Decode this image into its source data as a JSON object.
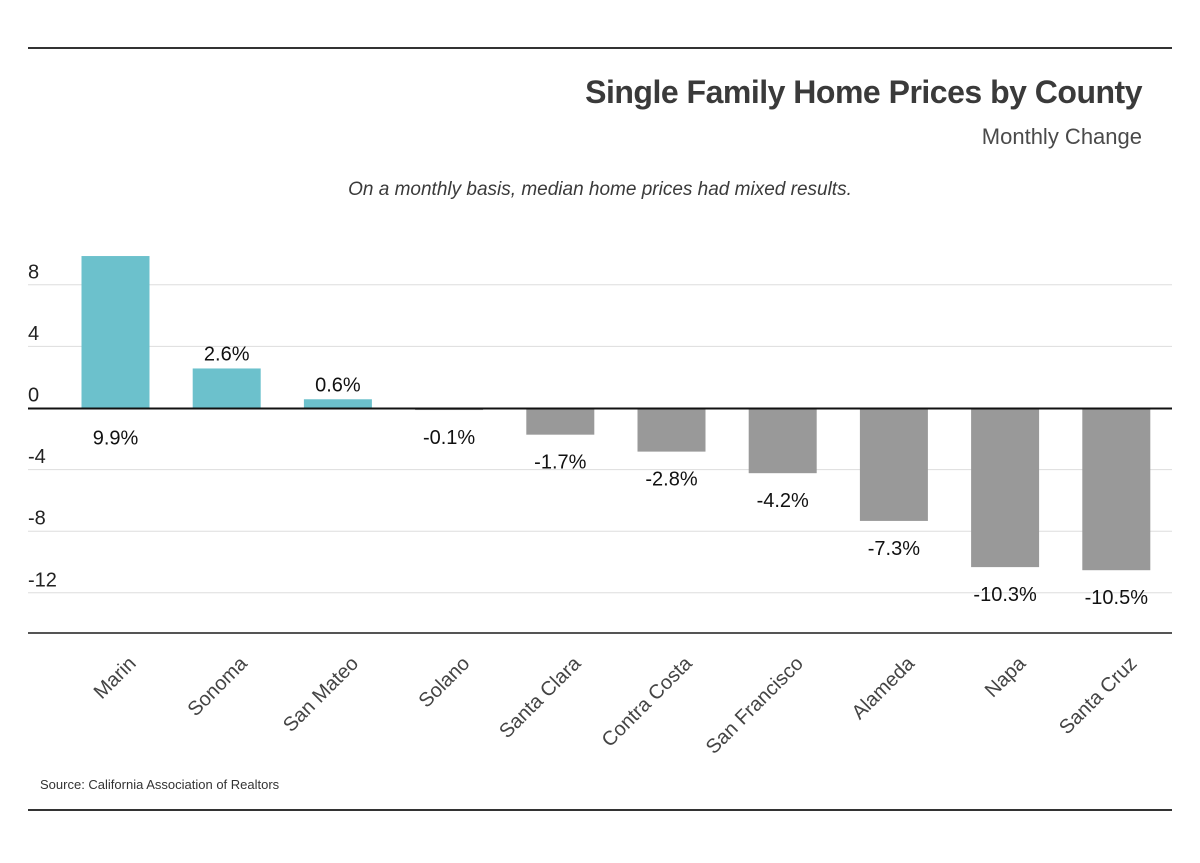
{
  "header": {
    "title": "Single Family Home Prices by County",
    "subtitle": "Monthly Change"
  },
  "note": "On a monthly basis, median home prices had mixed results.",
  "source": "Source:  California Association of Realtors",
  "colors": {
    "positive": "#6cc1cc",
    "negative": "#999999",
    "grid": "#dddddd",
    "zero_line": "#111111",
    "axis": "#555555"
  },
  "chart_data": {
    "type": "bar",
    "categories": [
      "Marin",
      "Sonoma",
      "San Mateo",
      "Solano",
      "Santa Clara",
      "Contra Costa",
      "San Francisco",
      "Alameda",
      "Napa",
      "Santa Cruz"
    ],
    "values": [
      9.9,
      2.6,
      0.6,
      -0.1,
      -1.7,
      -2.8,
      -4.2,
      -7.3,
      -10.3,
      -10.5
    ],
    "data_labels": [
      "9.9%",
      "2.6%",
      "0.6%",
      "-0.1%",
      "-1.7%",
      "-2.8%",
      "-4.2%",
      "-7.3%",
      "-10.3%",
      "-10.5%"
    ],
    "title": "Single Family Home Prices by County",
    "subtitle": "Monthly Change",
    "xlabel": "",
    "ylabel": "",
    "yticks": [
      8,
      4,
      0,
      -4,
      -8,
      -12
    ],
    "ylim": [
      -14.6,
      10
    ],
    "grid": true,
    "legend": "none"
  }
}
